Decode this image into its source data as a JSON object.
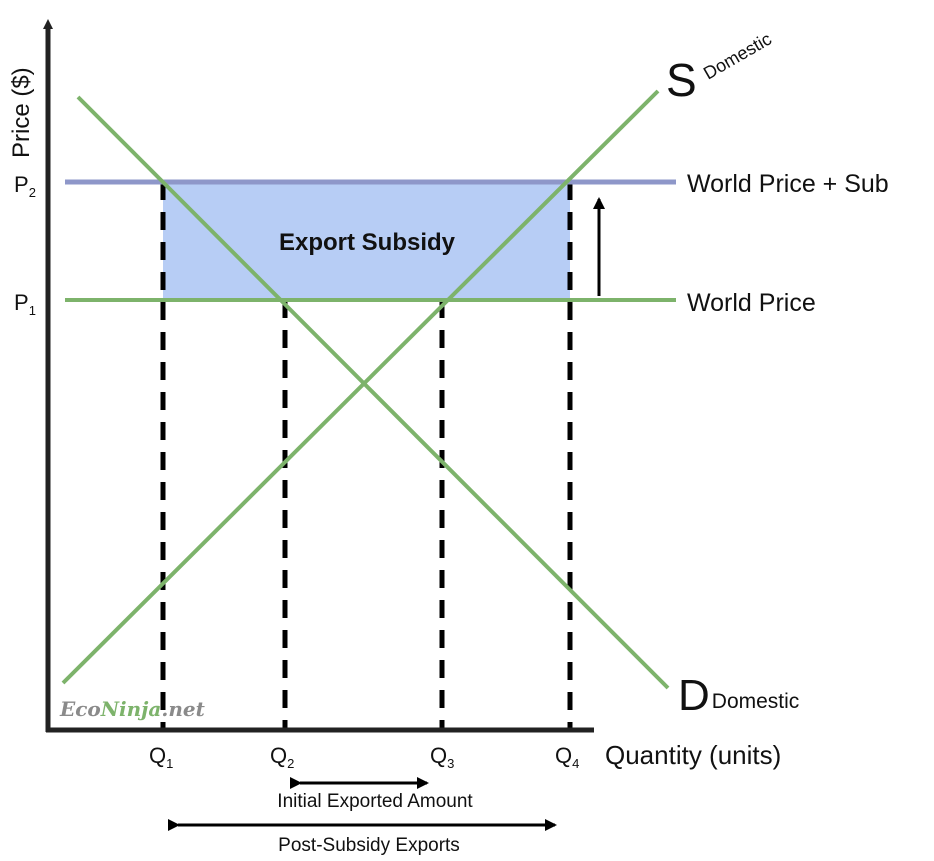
{
  "axes": {
    "y_label": "Price ($)",
    "x_label": "Quantity (units)"
  },
  "prices": {
    "p2": {
      "main": "P",
      "sub": "2"
    },
    "p1": {
      "main": "P",
      "sub": "1"
    }
  },
  "quantities": [
    {
      "main": "Q",
      "sub": "1"
    },
    {
      "main": "Q",
      "sub": "2"
    },
    {
      "main": "Q",
      "sub": "3"
    },
    {
      "main": "Q",
      "sub": "4"
    }
  ],
  "curves": {
    "supply": {
      "main": "S",
      "sub": "Domestic"
    },
    "demand": {
      "main": "D",
      "sub": "Domestic"
    }
  },
  "lines": {
    "world_price_sub": "World Price + Sub",
    "world_price": "World Price"
  },
  "area_label": "Export Subsidy",
  "annotations": {
    "initial_exports": "Initial Exported Amount",
    "post_subsidy_exports": "Post-Subsidy Exports"
  },
  "brand": {
    "part1": "Eco",
    "part2": "Ninja",
    "part3": ".net"
  },
  "colors": {
    "curve_green": "#7db36b",
    "world_price_sub_line": "#8e97c9",
    "subsidy_area": "#b7cdf5",
    "axis": "#222222",
    "brand_grey": "#8a8a8a",
    "brand_green": "#7db36b"
  }
}
